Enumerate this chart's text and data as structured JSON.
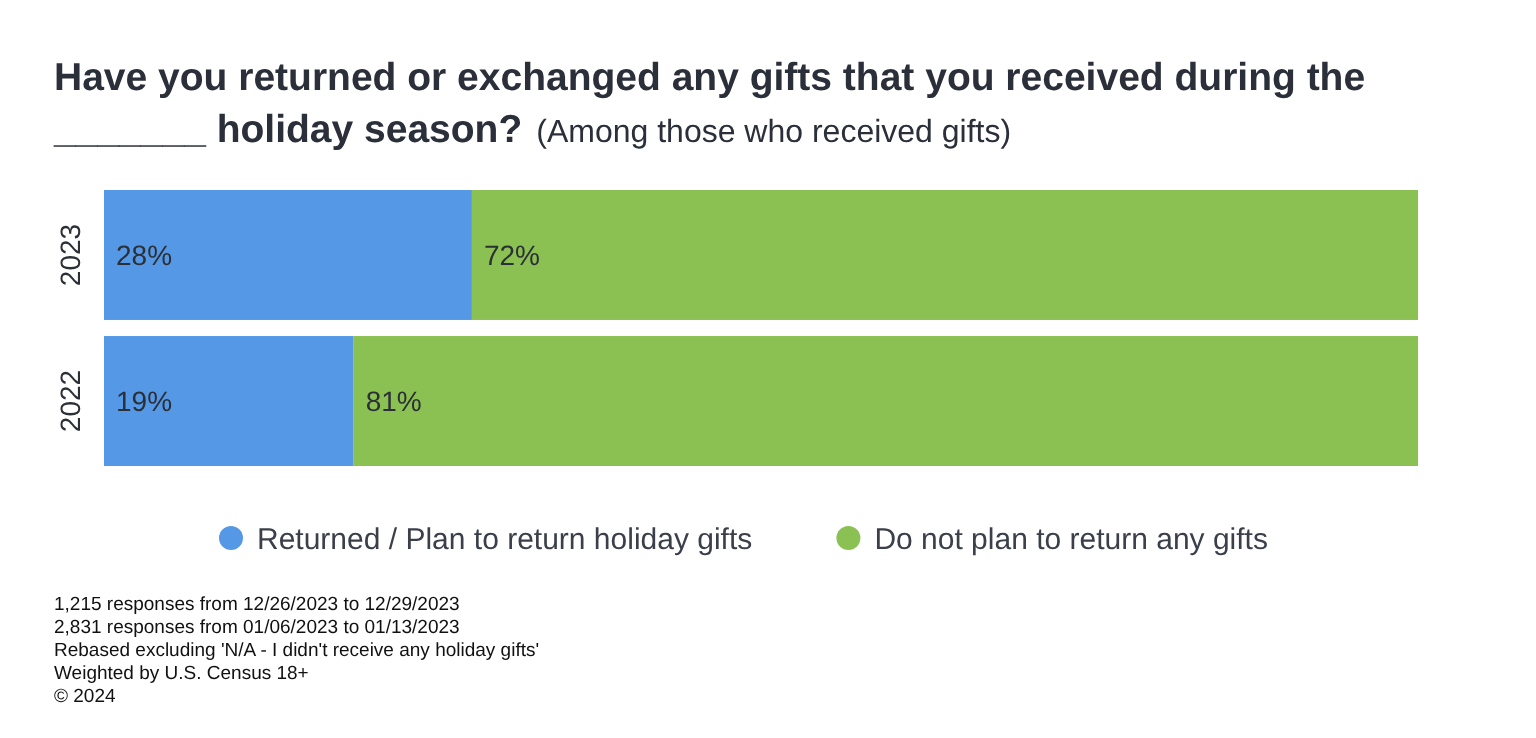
{
  "chart_data": {
    "type": "bar",
    "orientation": "horizontal",
    "stacked": true,
    "title": "Have you returned or exchanged any gifts that you received during the _______ holiday season?",
    "subtitle": "(Among those who received gifts)",
    "categories": [
      "2023",
      "2022"
    ],
    "series": [
      {
        "name": "Returned / Plan to return holiday gifts",
        "color": "#5599e6",
        "values": [
          28,
          19
        ],
        "value_labels": [
          "28%",
          "19%"
        ]
      },
      {
        "name": "Do not plan to return any gifts",
        "color": "#8bc152",
        "values": [
          72,
          81
        ],
        "value_labels": [
          "72%",
          "81%"
        ]
      }
    ],
    "xlim": [
      0,
      100
    ],
    "tick_labels": "y",
    "legend": "bottom",
    "annotations": [
      "1,215 responses from 12/26/2023 to 12/29/2023",
      "2,831 responses from 01/06/2023 to 01/13/2023",
      "Rebased excluding 'N/A - I didn't receive any holiday gifts'",
      "Weighted by U.S. Census 18+",
      "© 2024"
    ]
  }
}
